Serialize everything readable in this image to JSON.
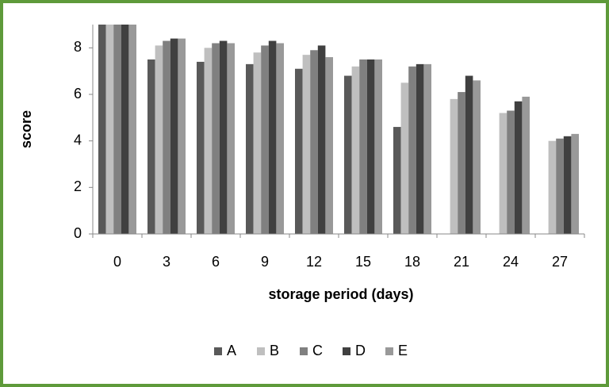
{
  "chart_data": {
    "type": "bar",
    "x_label": "storage period (days)",
    "y_label": "score",
    "categories": [
      "0",
      "3",
      "6",
      "9",
      "12",
      "15",
      "18",
      "21",
      "24",
      "27"
    ],
    "series": [
      {
        "name": "A",
        "color": "#595959",
        "values": [
          9,
          7.5,
          7.4,
          7.3,
          7.1,
          6.8,
          4.6,
          null,
          null,
          null
        ]
      },
      {
        "name": "B",
        "color": "#bfbfbf",
        "values": [
          9,
          8.1,
          8.0,
          7.8,
          7.7,
          7.2,
          6.5,
          5.8,
          5.2,
          4.0
        ]
      },
      {
        "name": "C",
        "color": "#808080",
        "values": [
          9,
          8.3,
          8.2,
          8.1,
          7.9,
          7.5,
          7.2,
          6.1,
          5.3,
          4.1
        ]
      },
      {
        "name": "D",
        "color": "#404040",
        "values": [
          9,
          8.4,
          8.3,
          8.3,
          8.1,
          7.5,
          7.3,
          6.8,
          5.7,
          4.2
        ]
      },
      {
        "name": "E",
        "color": "#999999",
        "values": [
          9,
          8.4,
          8.2,
          8.2,
          7.6,
          7.5,
          7.3,
          6.6,
          5.9,
          4.3
        ]
      }
    ],
    "ylim": [
      0,
      9
    ],
    "yticks": [
      0,
      2,
      4,
      6,
      8
    ],
    "grid": false,
    "legend": "bottom"
  }
}
